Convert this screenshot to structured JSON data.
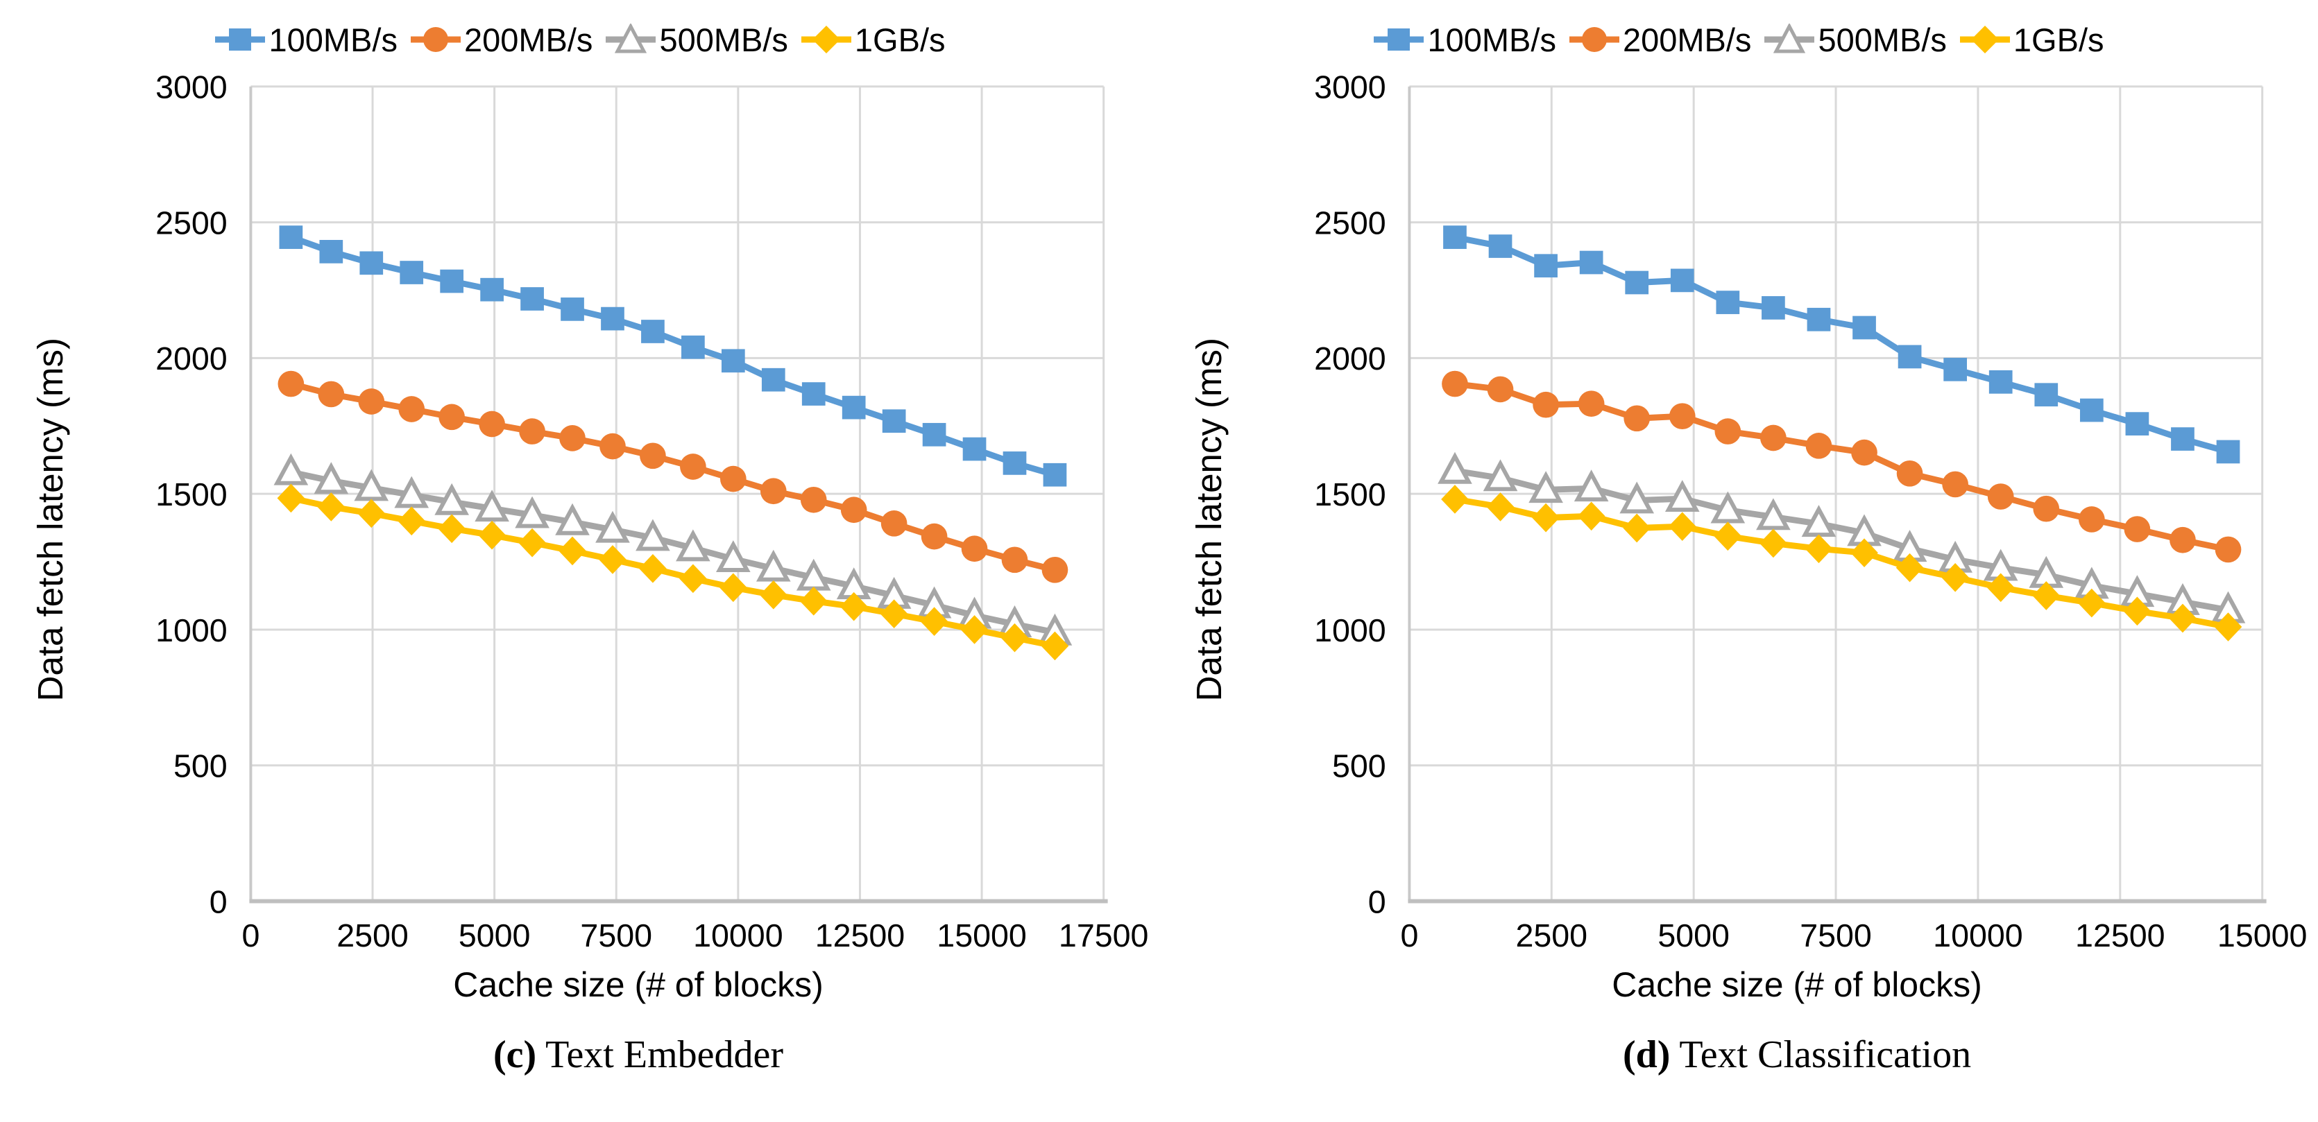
{
  "figure": {
    "ylabel": "Data fetch latency (ms)",
    "xlabel": "Cache size (# of blocks)"
  },
  "colors": {
    "blue": "#5B9BD5",
    "orange": "#ED7D31",
    "gray": "#A6A6A6",
    "yellow": "#FFC000",
    "gridline": "#D9D9D9",
    "axis_line": "#BFBFBF",
    "tick_text": "#000000"
  },
  "chart_data": [
    {
      "type": "line",
      "caption": {
        "open": "(",
        "letter": "c",
        "close": ") ",
        "title": "Text Embedder"
      },
      "xlabel": "Cache size (# of blocks)",
      "ylabel": "Data fetch latency (ms)",
      "xlim": [
        0,
        17500
      ],
      "ylim": [
        0,
        3000
      ],
      "x_ticks": [
        0,
        2500,
        5000,
        7500,
        10000,
        12500,
        15000,
        17500
      ],
      "y_ticks": [
        0,
        500,
        1000,
        1500,
        2000,
        2500,
        3000
      ],
      "grid": true,
      "legend_position": "top",
      "x": [
        825,
        1650,
        2475,
        3300,
        4125,
        4950,
        5775,
        6600,
        7425,
        8250,
        9075,
        9900,
        10725,
        11550,
        12375,
        13200,
        14025,
        14850,
        15675,
        16500
      ],
      "series": [
        {
          "name": "100MB/s",
          "color": "#5B9BD5",
          "marker": "square",
          "values": [
            2445,
            2392,
            2350,
            2315,
            2283,
            2252,
            2218,
            2180,
            2145,
            2098,
            2040,
            1990,
            1920,
            1868,
            1818,
            1768,
            1718,
            1665,
            1613,
            1570
          ]
        },
        {
          "name": "200MB/s",
          "color": "#ED7D31",
          "marker": "circle",
          "values": [
            1905,
            1867,
            1840,
            1812,
            1783,
            1757,
            1730,
            1705,
            1675,
            1640,
            1600,
            1555,
            1510,
            1478,
            1441,
            1391,
            1343,
            1298,
            1257,
            1220
          ]
        },
        {
          "name": "500MB/s",
          "color": "#A6A6A6",
          "marker": "triangle-open",
          "values": [
            1580,
            1548,
            1522,
            1496,
            1470,
            1446,
            1422,
            1396,
            1368,
            1338,
            1300,
            1260,
            1225,
            1192,
            1160,
            1125,
            1090,
            1052,
            1020,
            990
          ]
        },
        {
          "name": "1GB/s",
          "color": "#FFC000",
          "marker": "diamond",
          "values": [
            1484,
            1452,
            1428,
            1400,
            1372,
            1348,
            1320,
            1290,
            1258,
            1225,
            1188,
            1155,
            1128,
            1105,
            1085,
            1058,
            1030,
            1000,
            970,
            940
          ]
        }
      ]
    },
    {
      "type": "line",
      "caption": {
        "open": "(",
        "letter": "d",
        "close": ") ",
        "title": "Text Classification"
      },
      "xlabel": "Cache size (# of blocks)",
      "ylabel": "Data fetch latency (ms)",
      "xlim": [
        0,
        15000
      ],
      "ylim": [
        0,
        3000
      ],
      "x_ticks": [
        0,
        2500,
        5000,
        7500,
        10000,
        12500,
        15000
      ],
      "y_ticks": [
        0,
        500,
        1000,
        1500,
        2000,
        2500,
        3000
      ],
      "grid": true,
      "legend_position": "top",
      "x": [
        800,
        1600,
        2400,
        3200,
        4000,
        4800,
        5600,
        6400,
        7200,
        8000,
        8800,
        9600,
        10400,
        11200,
        12000,
        12800,
        13600,
        14400
      ],
      "series": [
        {
          "name": "100MB/s",
          "color": "#5B9BD5",
          "marker": "square",
          "values": [
            2445,
            2412,
            2340,
            2352,
            2278,
            2286,
            2205,
            2185,
            2142,
            2112,
            2005,
            1958,
            1912,
            1865,
            1808,
            1758,
            1702,
            1655
          ]
        },
        {
          "name": "200MB/s",
          "color": "#ED7D31",
          "marker": "circle",
          "values": [
            1905,
            1885,
            1828,
            1832,
            1778,
            1786,
            1730,
            1706,
            1677,
            1652,
            1575,
            1535,
            1490,
            1445,
            1406,
            1370,
            1330,
            1295
          ]
        },
        {
          "name": "500MB/s",
          "color": "#A6A6A6",
          "marker": "triangle-open",
          "values": [
            1585,
            1558,
            1515,
            1520,
            1476,
            1482,
            1440,
            1415,
            1390,
            1356,
            1298,
            1258,
            1228,
            1202,
            1162,
            1132,
            1102,
            1072
          ]
        },
        {
          "name": "1GB/s",
          "color": "#FFC000",
          "marker": "diamond",
          "values": [
            1480,
            1452,
            1412,
            1418,
            1374,
            1380,
            1344,
            1318,
            1298,
            1283,
            1228,
            1192,
            1155,
            1125,
            1098,
            1068,
            1042,
            1010
          ]
        }
      ]
    }
  ]
}
